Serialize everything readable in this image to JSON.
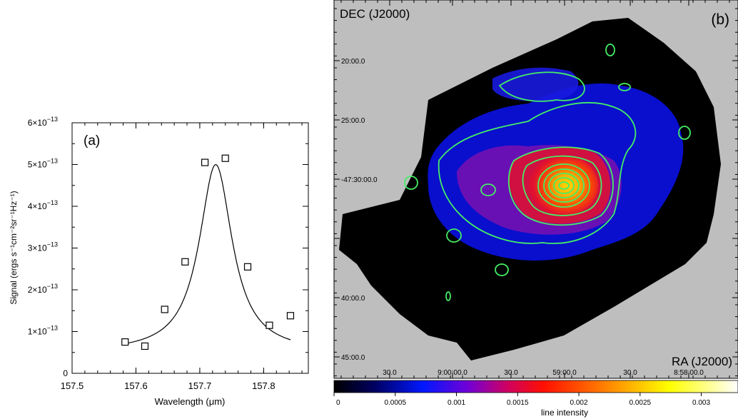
{
  "chart_data": [
    {
      "type": "scatter",
      "panel_label": "(a)",
      "xlabel": "Wavelength (μm)",
      "ylabel": "Signal (ergs s⁻¹cm⁻²sr⁻¹Hz⁻¹)",
      "xlim": [
        157.5,
        157.87
      ],
      "ylim": [
        0,
        6e-13
      ],
      "x_ticks": [
        157.5,
        157.6,
        157.7,
        157.8
      ],
      "x_tick_labels": [
        "157.5",
        "157.6",
        "157.7",
        "157.8"
      ],
      "y_ticks": [
        0,
        1e-13,
        2e-13,
        3e-13,
        4e-13,
        5e-13,
        6e-13
      ],
      "y_tick_labels": [
        {
          "mant": "0",
          "exp": ""
        },
        {
          "mant": "1×10",
          "exp": "−13"
        },
        {
          "mant": "2×10",
          "exp": "−13"
        },
        {
          "mant": "3×10",
          "exp": "−13"
        },
        {
          "mant": "4×10",
          "exp": "−13"
        },
        {
          "mant": "5×10",
          "exp": "−13"
        },
        {
          "mant": "6×10",
          "exp": "−13"
        }
      ],
      "points": {
        "x": [
          157.583,
          157.614,
          157.645,
          157.677,
          157.708,
          157.74,
          157.775,
          157.809,
          157.842
        ],
        "y": [
          7.5e-14,
          6.5e-14,
          1.53e-13,
          2.67e-13,
          5.05e-13,
          5.15e-13,
          2.55e-13,
          1.15e-13,
          1.38e-13
        ]
      },
      "fit": {
        "shape": "lorentzian",
        "center": 157.725,
        "fwhm": 0.063,
        "amplitude": 4.5e-13,
        "baseline": 5e-14,
        "x_range": [
          157.583,
          157.842
        ]
      }
    },
    {
      "type": "heatmap",
      "panel_label": "(b)",
      "ylabel": "DEC (J2000)",
      "xlabel": "RA (J2000)",
      "dec_tick_labels": [
        "20:00.0",
        "25:00.0",
        "-47:30:00.0",
        "35:00.0",
        "40:00.0",
        "45:00.0"
      ],
      "ra_tick_labels": [
        "30.0",
        "9:00:00.0",
        "30.0",
        "59:00.0",
        "30.0",
        "8:58:00.0"
      ],
      "colorbar": {
        "label": "line intensity",
        "range": [
          0,
          0.0033
        ],
        "ticks": [
          0,
          0.0005,
          0.001,
          0.0015,
          0.002,
          0.0025,
          0.003
        ],
        "tick_labels": [
          "0",
          "0.0005",
          "0.001",
          "0.0015",
          "0.002",
          "0.0025",
          "0.003"
        ],
        "colors": [
          "#000000",
          "#000060",
          "#0018ff",
          "#7000d8",
          "#d00060",
          "#ff1000",
          "#ff8000",
          "#ffff00",
          "#ffffff"
        ]
      },
      "background_color": "#bebebe",
      "contour_color": "#44ee66"
    }
  ]
}
